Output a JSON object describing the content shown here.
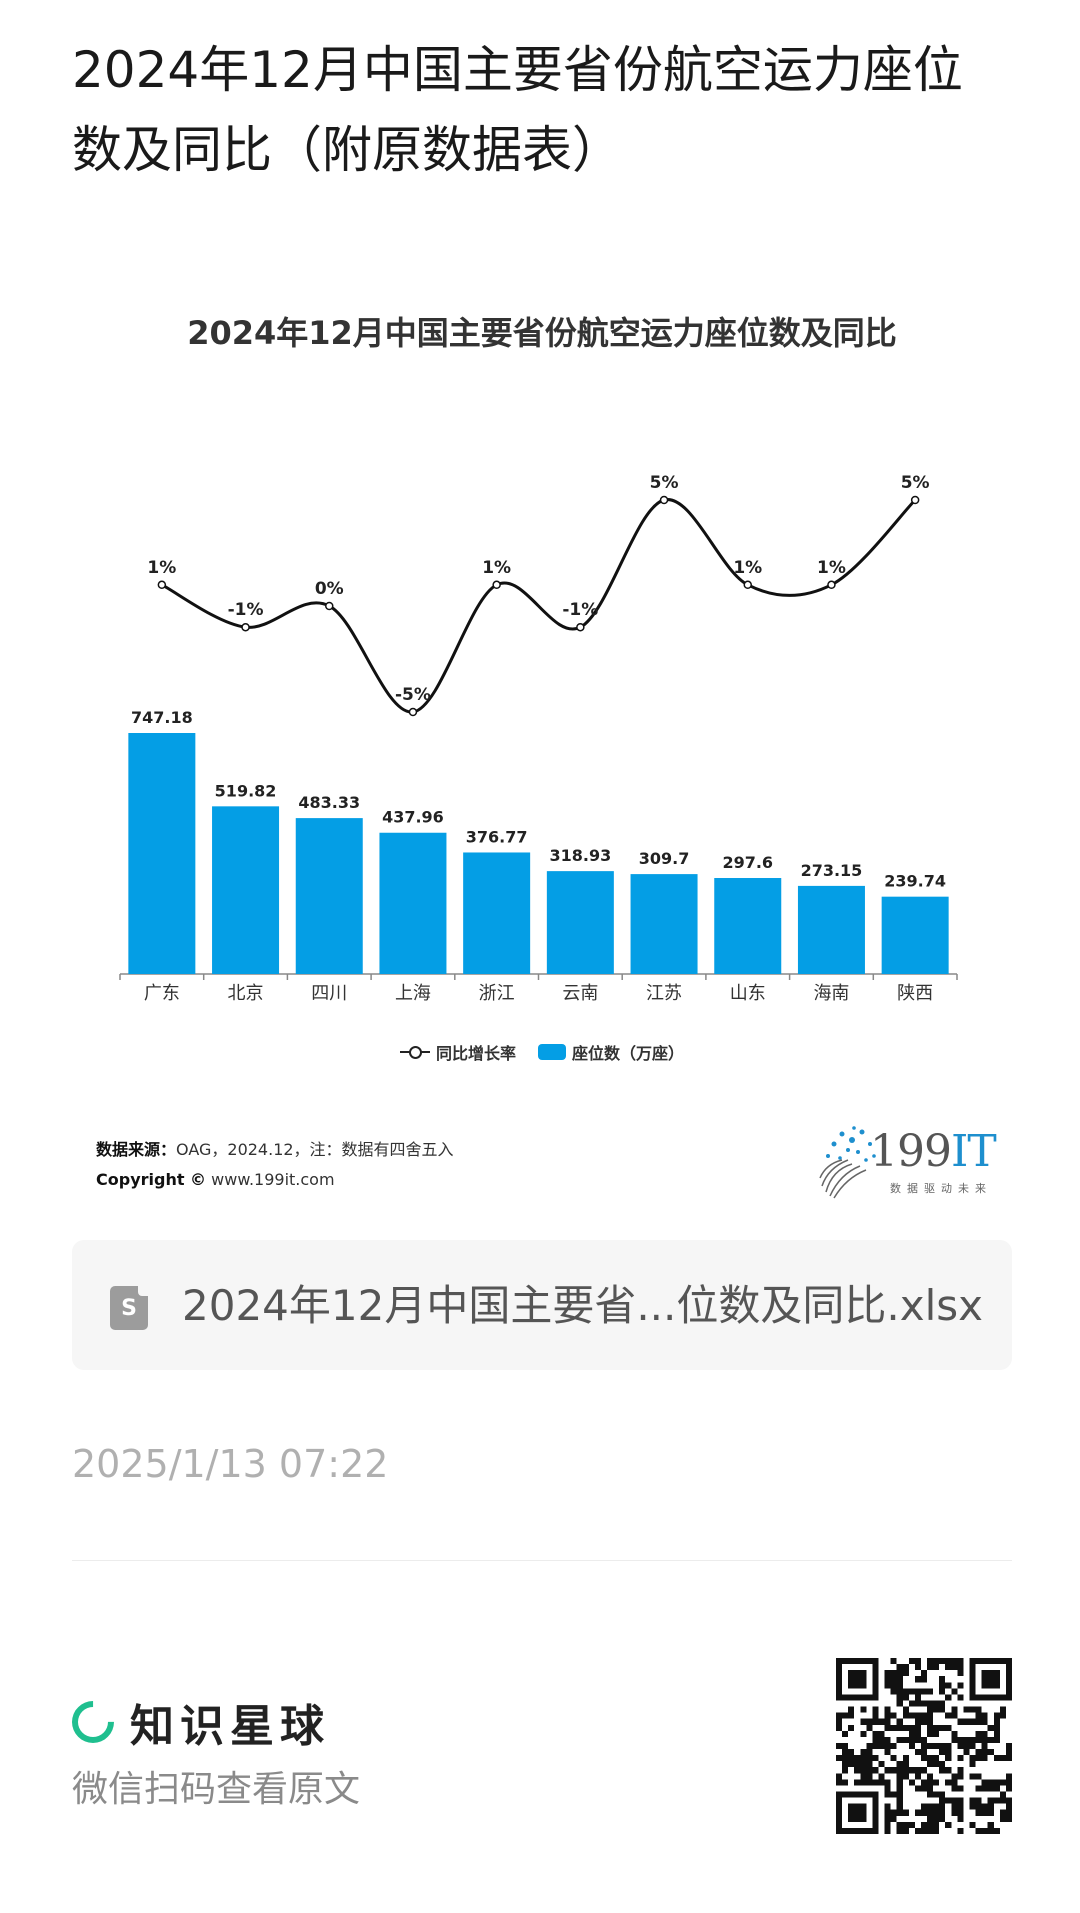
{
  "page": {
    "title": "2024年12月中国主要省份航空运力座位数及同比（附原数据表）"
  },
  "chart_data": {
    "type": "bar",
    "title": "2024年12月中国主要省份航空运力座位数及同比",
    "categories": [
      "广东",
      "北京",
      "四川",
      "上海",
      "浙江",
      "云南",
      "江苏",
      "山东",
      "海南",
      "陕西"
    ],
    "series": [
      {
        "name": "座位数（万座）",
        "type": "bar",
        "values": [
          747.18,
          519.82,
          483.33,
          437.96,
          376.77,
          318.93,
          309.7,
          297.6,
          273.15,
          239.74
        ],
        "labels": [
          "747.18",
          "519.82",
          "483.33",
          "437.96",
          "376.77",
          "318.93",
          "309.7",
          "297.6",
          "273.15",
          "239.74"
        ],
        "color": "#049ee5"
      },
      {
        "name": "同比增长率",
        "type": "line",
        "values": [
          1,
          -1,
          0,
          -5,
          1,
          -1,
          5,
          1,
          1,
          5
        ],
        "labels": [
          "1%",
          "-1%",
          "0%",
          "-5%",
          "1%",
          "-1%",
          "5%",
          "1%",
          "1%",
          "5%"
        ],
        "color": "#111111"
      }
    ],
    "legend_position": "bottom-center",
    "grid": false,
    "bar_ylim": [
      0,
      770
    ],
    "line_ylim": [
      -5,
      5
    ]
  },
  "source": {
    "label": "数据来源：",
    "text": "OAG，2024.12，注：数据有四舍五入",
    "copyright_label": "Copyright ©",
    "site": "www.199it.com"
  },
  "brand": {
    "name_num": "199",
    "name_it": "IT",
    "slogan": "数据驱动未来"
  },
  "file": {
    "icon_letter": "S",
    "name": "2024年12月中国主要省...位数及同比.xlsx"
  },
  "meta": {
    "timestamp": "2025/1/13 07:22"
  },
  "footer": {
    "planet_name": "知识星球",
    "hint": "微信扫码查看原文"
  }
}
